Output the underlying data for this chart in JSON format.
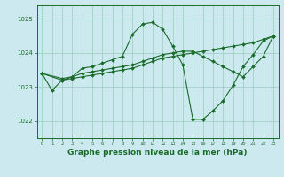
{
  "background_color": "#cce9f0",
  "grid_color": "#99ccbb",
  "line_color": "#1a6b2a",
  "xlabel": "Graphe pression niveau de la mer (hPa)",
  "yticks": [
    1022,
    1023,
    1024,
    1025
  ],
  "xticks": [
    0,
    1,
    2,
    3,
    4,
    5,
    6,
    7,
    8,
    9,
    10,
    11,
    12,
    13,
    14,
    15,
    16,
    17,
    18,
    19,
    20,
    21,
    22,
    23
  ],
  "xlim": [
    -0.5,
    23.5
  ],
  "ylim": [
    1021.5,
    1025.4
  ],
  "series": [
    {
      "x": [
        0,
        1,
        2,
        3,
        4,
        5,
        6,
        7,
        8,
        9,
        10,
        11,
        12,
        13,
        14,
        15,
        16,
        17,
        18,
        19,
        20,
        21,
        22,
        23
      ],
      "y": [
        1023.4,
        1022.9,
        1023.2,
        1023.3,
        1023.55,
        1023.6,
        1023.7,
        1023.8,
        1023.9,
        1024.55,
        1024.85,
        1024.9,
        1024.7,
        1024.2,
        1023.65,
        1022.05,
        1022.05,
        1022.3,
        1022.6,
        1023.05,
        1023.6,
        1023.95,
        1024.35,
        1024.5
      ]
    },
    {
      "x": [
        0,
        2,
        3,
        4,
        5,
        6,
        7,
        8,
        9,
        10,
        11,
        12,
        13,
        14,
        15,
        16,
        17,
        18,
        19,
        20,
        21,
        22,
        23
      ],
      "y": [
        1023.4,
        1023.2,
        1023.25,
        1023.3,
        1023.35,
        1023.4,
        1023.45,
        1023.5,
        1023.55,
        1023.65,
        1023.75,
        1023.85,
        1023.9,
        1023.95,
        1024.0,
        1024.05,
        1024.1,
        1024.15,
        1024.2,
        1024.25,
        1024.3,
        1024.4,
        1024.5
      ]
    },
    {
      "x": [
        0,
        2,
        3,
        4,
        5,
        6,
        7,
        8,
        9,
        10,
        11,
        12,
        13,
        14,
        15,
        16,
        17,
        18,
        19,
        20,
        21,
        22,
        23
      ],
      "y": [
        1023.4,
        1023.25,
        1023.3,
        1023.4,
        1023.45,
        1023.5,
        1023.55,
        1023.6,
        1023.65,
        1023.75,
        1023.85,
        1023.95,
        1024.0,
        1024.05,
        1024.05,
        1023.9,
        1023.75,
        1023.6,
        1023.45,
        1023.3,
        1023.6,
        1023.9,
        1024.5
      ]
    }
  ]
}
